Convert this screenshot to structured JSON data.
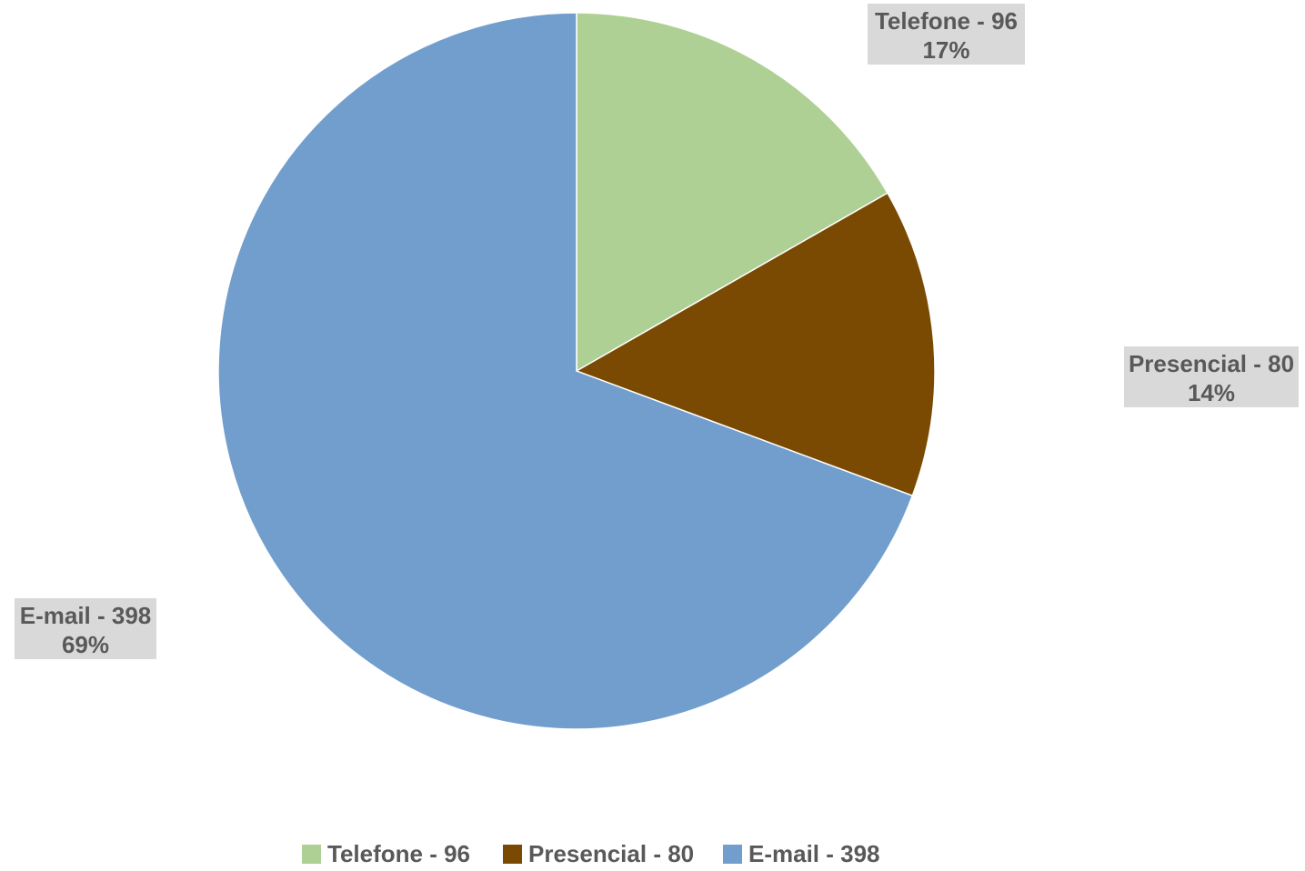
{
  "chart_data": {
    "type": "pie",
    "title": "",
    "categories": [
      "Telefone - 96",
      "Presencial - 80",
      "E-mail - 398"
    ],
    "values": [
      96,
      80,
      398
    ],
    "percent_labels": [
      "17%",
      "14%",
      "69%"
    ],
    "colors": [
      "#aed094",
      "#7a4a03",
      "#729ece"
    ],
    "start_angle": "12 o'clock",
    "direction": "clockwise",
    "data_labels": "outside, value + percent, grey boxed",
    "legend": "bottom",
    "label_box_color": "#d9d9d9",
    "text_color": "#595959"
  }
}
